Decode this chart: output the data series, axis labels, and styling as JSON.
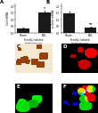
{
  "panel_A": {
    "categories": [
      "Sham",
      "BDL"
    ],
    "values": [
      0.3,
      1.5
    ],
    "errors": [
      0.07,
      0.15
    ],
    "ylabel": "Col mRNA",
    "xlabel": "Freshly isolated\ncholangiocytes",
    "label": "A",
    "bar_color": "#1a1a1a",
    "significance": [
      "",
      "*"
    ]
  },
  "panel_B": {
    "categories": [
      "Sham",
      "BDL"
    ],
    "values": [
      1.45,
      0.4
    ],
    "errors": [
      0.1,
      0.06
    ],
    "ylabel": "α-Sma mRNA",
    "xlabel": "Freshly isolated\ncholangiocytes",
    "label": "B",
    "bar_color": "#1a1a1a",
    "significance": [
      "",
      "**"
    ]
  },
  "panel_labels": [
    "C",
    "D",
    "E",
    "F"
  ],
  "bg_color": "#ffffff"
}
